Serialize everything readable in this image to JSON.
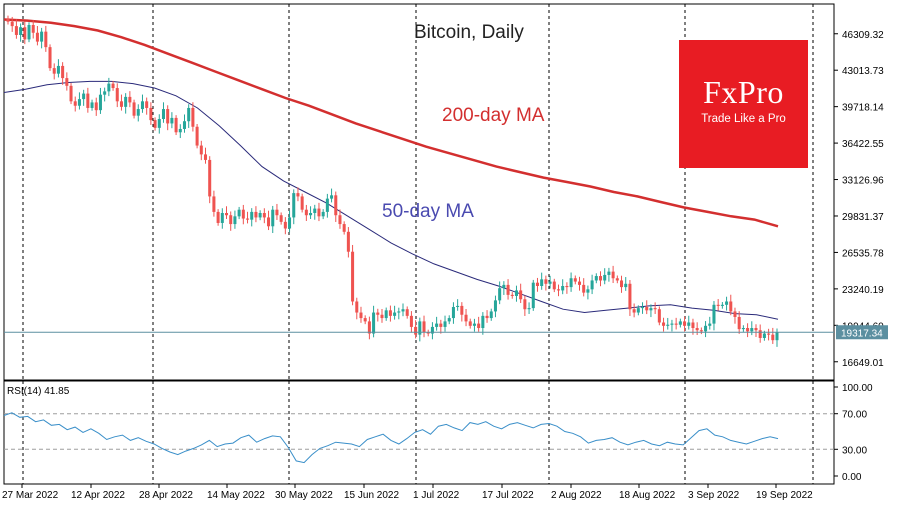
{
  "chart_data": {
    "type": "candlestick",
    "title": "Bitcoin, Daily",
    "series": [
      {
        "name": "200-day MA",
        "color": "#d32f2f"
      },
      {
        "name": "50-day MA",
        "color": "#2a2a7a"
      }
    ],
    "last_price": "19317.34",
    "price_axis": {
      "ticks": [
        "46309.32",
        "43013.73",
        "39718.14",
        "36422.55",
        "33126.96",
        "29831.37",
        "26535.78",
        "23240.19",
        "19944.60",
        "16649.01"
      ],
      "range": [
        15000,
        49000
      ]
    },
    "x_axis": {
      "labels": [
        "27 Mar 2022",
        "12 Apr 2022",
        "28 Apr 2022",
        "14 May 2022",
        "30 May 2022",
        "15 Jun 2022",
        "1 Jul 2022",
        "17 Jul 2022",
        "2 Aug 2022",
        "18 Aug 2022",
        "3 Sep 2022",
        "19 Sep 2022"
      ]
    },
    "rsi": {
      "label": "RSI(14) 41.85",
      "ticks": [
        "100.00",
        "70.00",
        "30.00",
        "0.00"
      ],
      "levels": [
        70,
        30
      ]
    },
    "candles_close": [
      47400,
      47000,
      46200,
      46900,
      45800,
      47100,
      46400,
      45600,
      46500,
      45100,
      43200,
      42700,
      43400,
      42300,
      41600,
      40200,
      39800,
      40400,
      40900,
      39600,
      40100,
      39400,
      40800,
      41100,
      41800,
      41400,
      40200,
      39700,
      40600,
      40100,
      38900,
      39500,
      40200,
      39600,
      38500,
      37800,
      38600,
      39500,
      38200,
      38700,
      37400,
      37700,
      38400,
      39600,
      37900,
      36200,
      35400,
      34900,
      31600,
      30200,
      29200,
      30100,
      29900,
      29100,
      29800,
      30400,
      29600,
      29500,
      30200,
      29700,
      30100,
      29700,
      28900,
      30400,
      29900,
      29300,
      28700,
      29700,
      31900,
      31600,
      30400,
      29900,
      30100,
      30500,
      29800,
      30200,
      31400,
      31700,
      29900,
      29100,
      28400,
      26600,
      22100,
      21100,
      20600,
      20300,
      19200,
      21100,
      20900,
      20600,
      21300,
      20800,
      21100,
      21200,
      21400,
      20800,
      19800,
      19100,
      20300,
      19300,
      19200,
      19800,
      20100,
      19800,
      20300,
      20600,
      21600,
      21700,
      20900,
      20300,
      19900,
      20100,
      19700,
      20800,
      20600,
      21200,
      22200,
      23300,
      23600,
      22700,
      22600,
      23100,
      22300,
      21400,
      21500,
      23800,
      23500,
      24100,
      23700,
      23900,
      23200,
      23100,
      23500,
      23400,
      24200,
      23900,
      23600,
      22900,
      23200,
      24000,
      24400,
      24000,
      24500,
      24800,
      24200,
      24000,
      23400,
      23700,
      21400,
      21100,
      21500,
      21600,
      21300,
      21500,
      21400,
      20200,
      19900,
      20000,
      20100,
      20000,
      20300,
      19900,
      20200,
      19700,
      19500,
      19400,
      19900,
      20100,
      21800,
      21700,
      21800,
      22100,
      21200,
      20700,
      19600,
      19700,
      19400,
      19700,
      19500,
      18800,
      19200,
      19100,
      18600,
      19317
    ],
    "ma200": [
      47600,
      47500,
      47300,
      47000,
      46600,
      46000,
      45300,
      44500,
      43700,
      42900,
      42100,
      41300,
      40500,
      39800,
      39000,
      38200,
      37500,
      36800,
      36100,
      35500,
      34900,
      34300,
      33800,
      33300,
      32900,
      32500,
      32000,
      31600,
      31100,
      30600,
      30200,
      29800,
      29500,
      28900
    ],
    "ma50": [
      41000,
      41300,
      41700,
      41900,
      42000,
      42000,
      41800,
      41400,
      40700,
      39600,
      38000,
      36200,
      34300,
      33000,
      32000,
      31000,
      29800,
      28600,
      27400,
      26400,
      25500,
      24800,
      24100,
      23500,
      22800,
      22100,
      21400,
      21100,
      21300,
      21500,
      21700,
      21800,
      21500,
      21300,
      21000,
      20900,
      20500
    ],
    "rsi_values": [
      68,
      71,
      66,
      67,
      61,
      63,
      57,
      58,
      52,
      55,
      49,
      53,
      48,
      41,
      44,
      46,
      40,
      43,
      39,
      36,
      31,
      27,
      24,
      28,
      31,
      35,
      40,
      33,
      36,
      37,
      43,
      46,
      38,
      42,
      45,
      44,
      32,
      17,
      15,
      24,
      31,
      34,
      38,
      37,
      36,
      33,
      41,
      44,
      47,
      40,
      36,
      42,
      49,
      52,
      47,
      56,
      58,
      54,
      51,
      60,
      58,
      61,
      56,
      53,
      58,
      60,
      57,
      54,
      58,
      59,
      56,
      50,
      48,
      44,
      37,
      40,
      41,
      43,
      38,
      35,
      38,
      40,
      36,
      34,
      38,
      36,
      35,
      43,
      51,
      53,
      46,
      44,
      40,
      38,
      36,
      39,
      42,
      44,
      42
    ]
  }
}
